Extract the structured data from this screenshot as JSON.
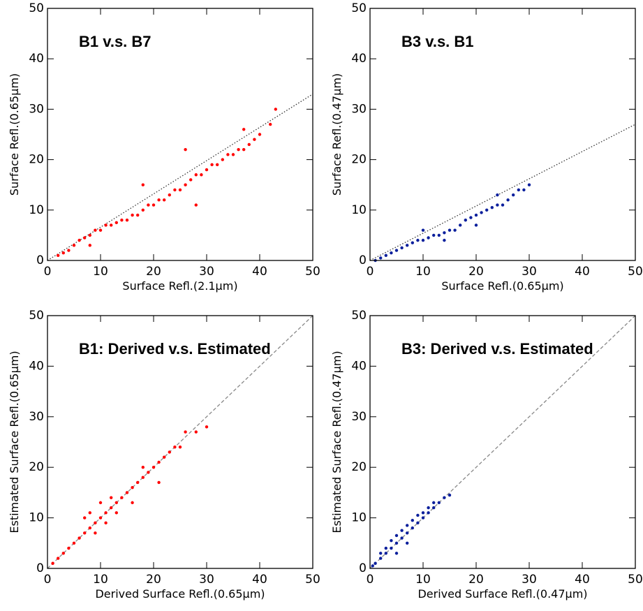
{
  "chart_data": [
    {
      "type": "scatter",
      "title": "B1 v.s. B7",
      "xlabel": "Surface Refl.(2.1μm)",
      "ylabel": "Surface Refl.(0.65μm)",
      "xlim": [
        0,
        50
      ],
      "ylim": [
        0,
        50
      ],
      "xticks": [
        0,
        10,
        20,
        30,
        40,
        50
      ],
      "yticks": [
        0,
        10,
        20,
        30,
        40,
        50
      ],
      "series": [
        {
          "color": "#ff0000",
          "x": [
            2,
            3,
            4,
            5,
            6,
            7,
            8,
            9,
            10,
            11,
            12,
            13,
            14,
            15,
            16,
            17,
            18,
            19,
            20,
            21,
            22,
            23,
            24,
            25,
            26,
            27,
            28,
            29,
            30,
            31,
            32,
            33,
            34,
            35,
            36,
            37,
            38,
            39,
            40,
            42,
            43,
            18,
            26,
            28,
            37,
            8
          ],
          "y": [
            1,
            1.5,
            2,
            3,
            4,
            4.5,
            5,
            6,
            6,
            7,
            7,
            7.5,
            8,
            8,
            9,
            9,
            10,
            11,
            11,
            12,
            12,
            13,
            14,
            14,
            15,
            16,
            17,
            17,
            18,
            19,
            19,
            20,
            21,
            21,
            22,
            22,
            23,
            24,
            25,
            27,
            30,
            15,
            22,
            11,
            26,
            3
          ]
        }
      ],
      "fit_line": {
        "x": [
          0,
          50
        ],
        "y": [
          0,
          33
        ],
        "color": "#333333",
        "style": "dotted"
      }
    },
    {
      "type": "scatter",
      "title": "B3 v.s. B1",
      "xlabel": "Surface Refl.(0.65μm)",
      "ylabel": "Surface Refl.(0.47μm)",
      "xlim": [
        0,
        50
      ],
      "ylim": [
        0,
        50
      ],
      "xticks": [
        0,
        10,
        20,
        30,
        40,
        50
      ],
      "yticks": [
        0,
        10,
        20,
        30,
        40,
        50
      ],
      "series": [
        {
          "color": "#0a1f9c",
          "x": [
            1,
            2,
            3,
            4,
            5,
            6,
            7,
            8,
            9,
            10,
            11,
            12,
            13,
            14,
            15,
            16,
            17,
            18,
            19,
            20,
            21,
            22,
            23,
            24,
            25,
            26,
            27,
            28,
            29,
            30,
            14,
            20,
            10,
            24
          ],
          "y": [
            0,
            0.5,
            1,
            1.5,
            2,
            2.5,
            3,
            3.5,
            4,
            4,
            4.5,
            5,
            5,
            5.5,
            6,
            6,
            7,
            8,
            8.5,
            9,
            9.5,
            10,
            10.5,
            11,
            11,
            12,
            13,
            14,
            14,
            15,
            4,
            7,
            6,
            13
          ]
        }
      ],
      "fit_line": {
        "x": [
          0,
          50
        ],
        "y": [
          0,
          27
        ],
        "color": "#333333",
        "style": "dotted"
      }
    },
    {
      "type": "scatter",
      "title": "B1: Derived v.s. Estimated",
      "xlabel": "Derived Surface Refl.(0.65μm)",
      "ylabel": "Estimated Surface Refl.(0.65μm)",
      "xlim": [
        0,
        50
      ],
      "ylim": [
        0,
        50
      ],
      "xticks": [
        0,
        10,
        20,
        30,
        40,
        50
      ],
      "yticks": [
        0,
        10,
        20,
        30,
        40,
        50
      ],
      "series": [
        {
          "color": "#ff0000",
          "x": [
            1,
            2,
            3,
            4,
            5,
            6,
            7,
            7,
            8,
            8,
            9,
            9,
            10,
            10,
            11,
            11,
            12,
            12,
            13,
            13,
            14,
            15,
            16,
            16,
            17,
            18,
            18,
            19,
            20,
            21,
            21,
            22,
            23,
            24,
            25,
            26,
            28,
            30
          ],
          "y": [
            1,
            2,
            3,
            4,
            5,
            6,
            7,
            10,
            8,
            11,
            9,
            7,
            10,
            13,
            11,
            9,
            12,
            14,
            13,
            11,
            14,
            15,
            16,
            13,
            17,
            18,
            20,
            19,
            20,
            21,
            17,
            22,
            23,
            24,
            24,
            27,
            27,
            28
          ]
        }
      ],
      "fit_line": {
        "x": [
          0,
          50
        ],
        "y": [
          0,
          50
        ],
        "color": "#888888",
        "style": "dashed"
      }
    },
    {
      "type": "scatter",
      "title": "B3: Derived v.s. Estimated",
      "xlabel": "Derived Surface Refl.(0.47μm)",
      "ylabel": "Estimated Surface Refl.(0.47μm)",
      "xlim": [
        0,
        50
      ],
      "ylim": [
        0,
        50
      ],
      "xticks": [
        0,
        10,
        20,
        30,
        40,
        50
      ],
      "yticks": [
        0,
        10,
        20,
        30,
        40,
        50
      ],
      "series": [
        {
          "color": "#0a1f9c",
          "x": [
            0.5,
            1,
            2,
            2,
            3,
            3,
            4,
            4,
            5,
            5,
            6,
            6,
            7,
            7,
            8,
            8,
            9,
            9,
            10,
            10,
            11,
            11,
            12,
            12,
            13,
            14,
            15,
            5,
            7
          ],
          "y": [
            0.5,
            1,
            2,
            3,
            3,
            4,
            4,
            5.5,
            5,
            6.5,
            6,
            7.5,
            7,
            8.5,
            8,
            9.5,
            9,
            10.5,
            10,
            11,
            11,
            12,
            12,
            13,
            13,
            14,
            14.5,
            3,
            5
          ]
        }
      ],
      "fit_line": {
        "x": [
          0,
          50
        ],
        "y": [
          0,
          50
        ],
        "color": "#888888",
        "style": "dashed"
      }
    }
  ]
}
